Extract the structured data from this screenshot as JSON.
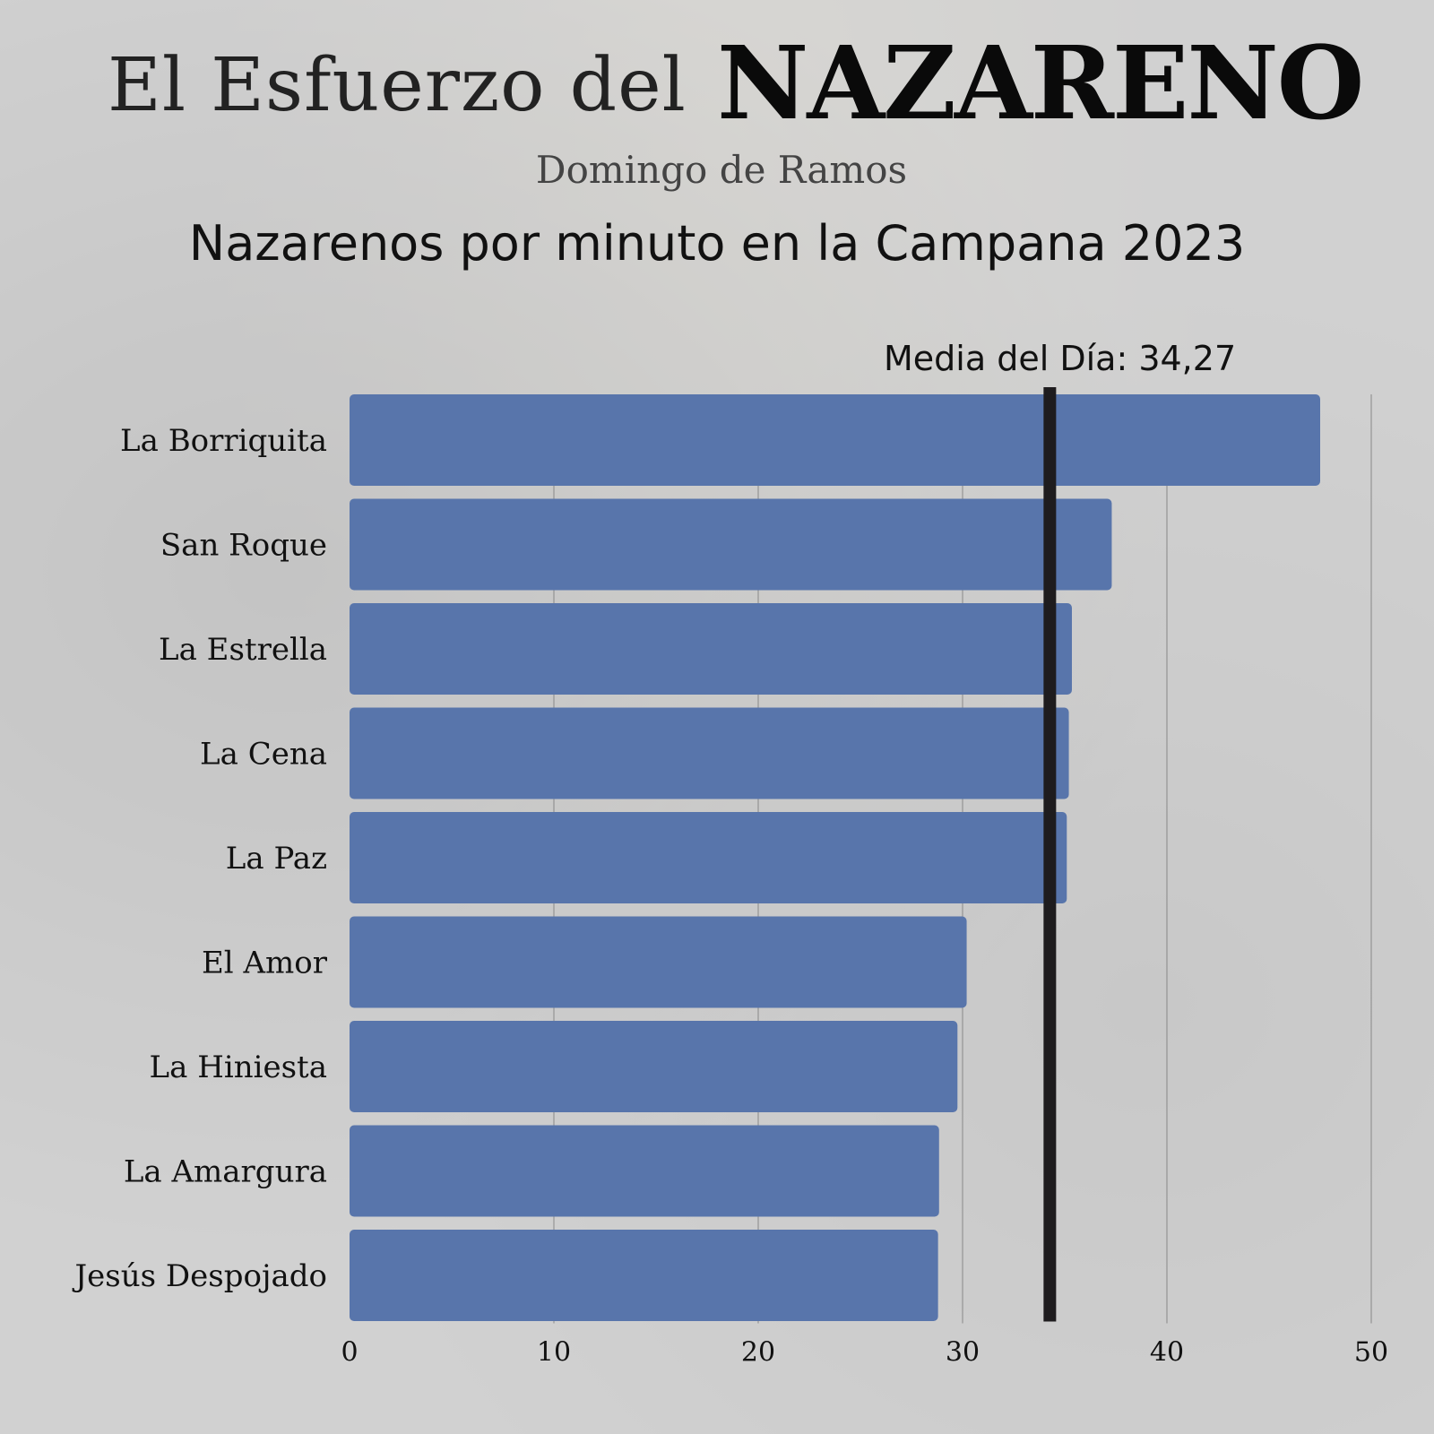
{
  "header": {
    "title_light": "El Esfuerzo del",
    "title_bold": "NAZARENO",
    "subtitle": "Domingo de Ramos"
  },
  "chart_data": {
    "type": "bar",
    "orientation": "horizontal",
    "title": "Nazarenos por minuto en la Campana 2023",
    "categories": [
      "La Borriquita",
      "San Roque",
      "La Estrella",
      "La Cena",
      "La Paz",
      "El Amor",
      "La Hiniesta",
      "La Amargura",
      "Jesús Despojado"
    ],
    "values": [
      47.5,
      37.3,
      35.35,
      35.2,
      35.1,
      30.2,
      29.75,
      28.85,
      28.8
    ],
    "xlim": [
      0,
      50
    ],
    "xticks": [
      "0",
      "10",
      "20",
      "30",
      "40",
      "50"
    ],
    "xlabel": "",
    "ylabel": "",
    "grid": "vertical",
    "bar_color": "#5875ab",
    "reference_line": {
      "label": "Media del Día: 34,27",
      "value": 34.27,
      "color": "#1e1c1e"
    }
  }
}
